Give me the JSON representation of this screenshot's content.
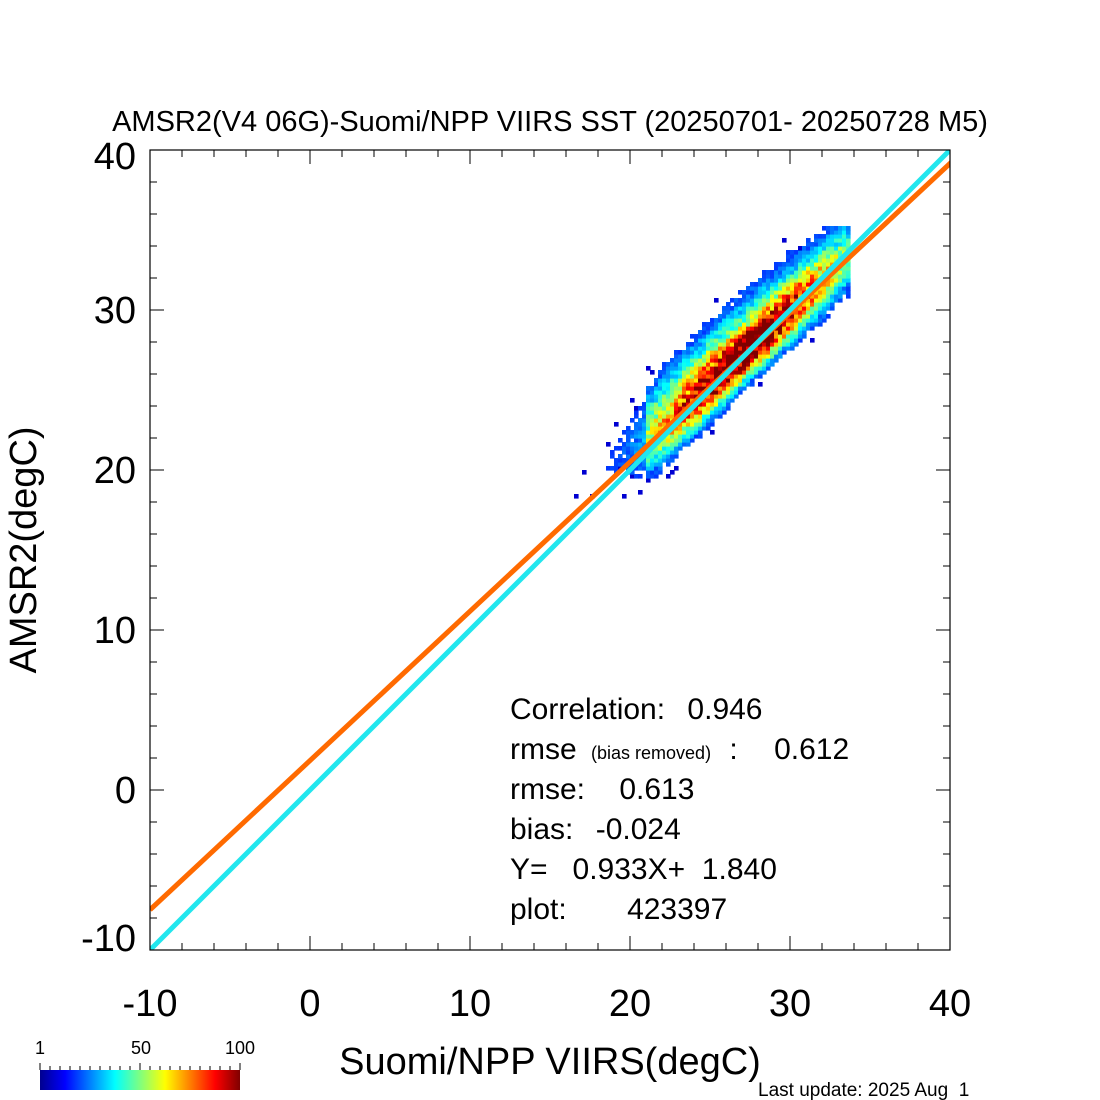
{
  "chart_data": {
    "type": "scatter",
    "title": "AMSR2(V4 06G)-Suomi/NPP VIIRS SST (20250701- 20250728 M5)",
    "xlabel": "Suomi/NPP VIIRS(degC)",
    "ylabel": "AMSR2(degC)",
    "xlim": [
      -10,
      40
    ],
    "ylim": [
      -10,
      40
    ],
    "x_ticks": [
      -10,
      0,
      10,
      20,
      30,
      40
    ],
    "y_ticks": [
      -10,
      0,
      10,
      20,
      30,
      40
    ],
    "x_tick_labels": [
      "-10",
      "0",
      "10",
      "20",
      "30",
      "40"
    ],
    "y_tick_labels": [
      "-10",
      "0",
      "10",
      "20",
      "30",
      "40"
    ],
    "grid": false,
    "density": {
      "description_values": "2D histogram of point counts per bin",
      "center": [
        27.5,
        27.5
      ],
      "x_range": [
        17,
        33
      ],
      "y_range": [
        18.5,
        34
      ]
    },
    "lines": [
      {
        "kind": "regression",
        "slope": 0.933,
        "intercept": 1.84,
        "color": "#ff6a00"
      },
      {
        "kind": "one-to-one",
        "slope": 1.0,
        "intercept": 0.0,
        "color": "#22e6ee"
      }
    ],
    "stats": {
      "correlation_label": "Correlation:",
      "correlation": "0.946",
      "rmse_br_label": "rmse",
      "rmse_br_note": "(bias removed)",
      "rmse_br_sep": ":",
      "rmse_br": "0.612",
      "rmse_label": "rmse:",
      "rmse": "0.613",
      "bias_label": "bias:",
      "bias": "-0.024",
      "fit_text": "Y=   0.933X+  1.840",
      "plot_label": "plot:",
      "plot_count": "423397"
    },
    "colorbar": {
      "labels": [
        "1",
        "50",
        "100"
      ],
      "min": 1,
      "max": 100,
      "colormap": "jet"
    }
  },
  "footer": {
    "last_update": "Last update: 2025 Aug  1"
  }
}
